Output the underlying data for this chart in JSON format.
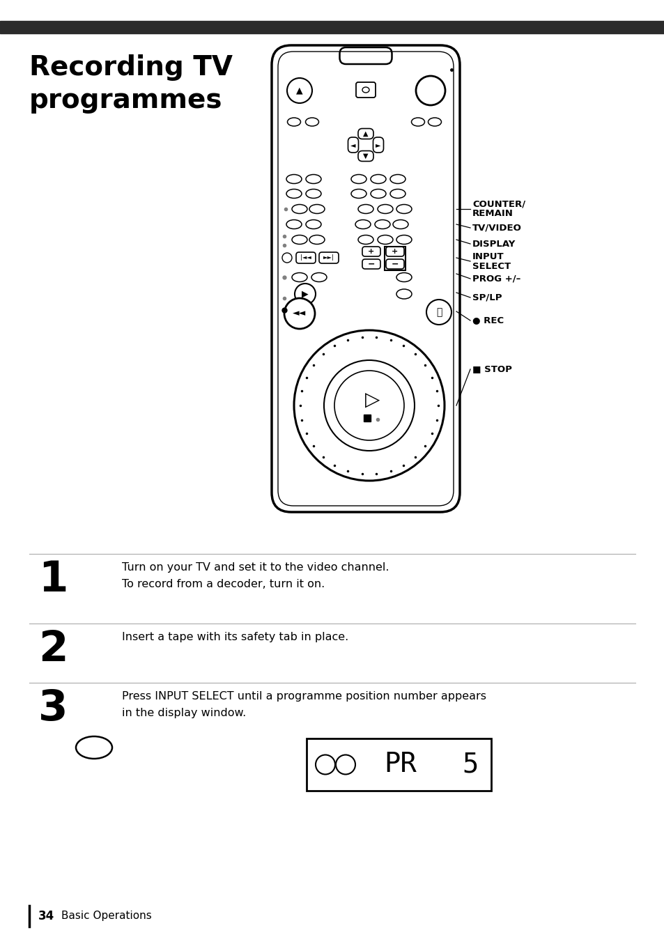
{
  "title_line1": "Recording TV",
  "title_line2": "programmes",
  "title_fontsize": 28,
  "bg_color": "#ffffff",
  "text_color": "#000000",
  "header_bar_color": "#2b2b2b",
  "step1_num": "1",
  "step1_line1": "Turn on your TV and set it to the video channel.",
  "step1_line2": "To record from a decoder, turn it on.",
  "step2_num": "2",
  "step2_line1": "Insert a tape with its safety tab in place.",
  "step3_num": "3",
  "step3_line1": "Press INPUT SELECT until a programme position number appears",
  "step3_line2": "in the display window.",
  "footer_num": "34",
  "footer_text": "Basic Operations",
  "label_counter": "COUNTER/\nREMAIN",
  "label_tvvideo": "TV/VIDEO",
  "label_display": "DISPLAY",
  "label_input": "INPUT\nSELECT",
  "label_prog": "PROG +/–",
  "label_splp": "SP/LP",
  "label_rec": "● REC",
  "label_stop": "■ STOP"
}
